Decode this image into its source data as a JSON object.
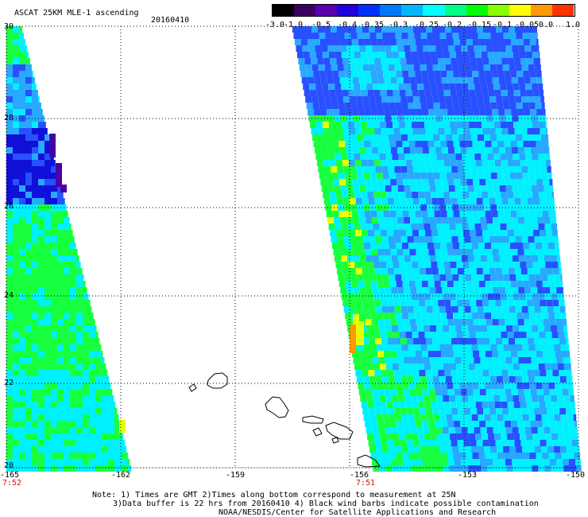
{
  "header": {
    "title": "ASCAT 25KM MLE-1 ascending",
    "date": "20160410"
  },
  "colorbar": {
    "labels": [
      "-3.0",
      "-1.0",
      "-0.5",
      "-0.4",
      "-0.35",
      "-0.3",
      "-0.25",
      "-0.2",
      "-0.15",
      "-0.1",
      "-0.05",
      "0.0",
      "1.0"
    ],
    "colors": [
      "#000000",
      "#3a0060",
      "#5a00b0",
      "#2000e0",
      "#0030ff",
      "#0078ff",
      "#00b8ff",
      "#00ffff",
      "#00ff88",
      "#00ff00",
      "#88ff00",
      "#ffff00",
      "#ff9900",
      "#ff3300"
    ]
  },
  "axes": {
    "lat_labels": [
      "30",
      "28",
      "26",
      "24",
      "22",
      "20"
    ],
    "lon_labels": [
      "-165",
      "-162",
      "-159",
      "-156",
      "-153",
      "-150"
    ],
    "time_labels": [
      "7:52",
      "7:51"
    ]
  },
  "swath_palette": {
    "blue": "#2850ff",
    "lightblue": "#28a8ff",
    "cyan": "#00f0ff",
    "green": "#18ff40",
    "yellow": "#e6ff00",
    "orange": "#ff9a00",
    "darkblue": "#1010d8",
    "purple": "#4a00a8"
  },
  "notes": {
    "line1": "Note: 1) Times are GMT 2)Times along bottom correspond to measurement at 25N",
    "line2": "3)Data buffer is 22 hrs from 20160410 4) Black wind barbs indicate possible contamination",
    "line3": "NOAA/NESDIS/Center for Satellite Applications and Research"
  }
}
